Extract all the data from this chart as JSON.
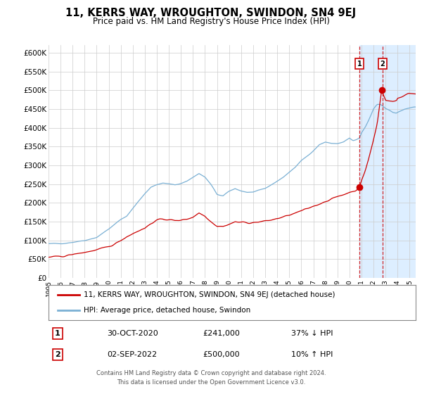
{
  "title": "11, KERRS WAY, WROUGHTON, SWINDON, SN4 9EJ",
  "subtitle": "Price paid vs. HM Land Registry's House Price Index (HPI)",
  "title_fontsize": 10.5,
  "subtitle_fontsize": 8.5,
  "hpi_color": "#7ab0d4",
  "property_color": "#cc0000",
  "bg_color": "#ffffff",
  "plot_bg_color": "#ffffff",
  "highlight_bg_color": "#ddeeff",
  "grid_color": "#cccccc",
  "marker1_date": 2020.83,
  "marker1_value": 241000,
  "marker2_date": 2022.67,
  "marker2_value": 500000,
  "dashed_line1_x": 2020.83,
  "dashed_line2_x": 2022.75,
  "legend_line1": "11, KERRS WAY, WROUGHTON, SWINDON, SN4 9EJ (detached house)",
  "legend_line2": "HPI: Average price, detached house, Swindon",
  "table_row1": [
    "1",
    "30-OCT-2020",
    "£241,000",
    "37% ↓ HPI"
  ],
  "table_row2": [
    "2",
    "02-SEP-2022",
    "£500,000",
    "10% ↑ HPI"
  ],
  "footer1": "Contains HM Land Registry data © Crown copyright and database right 2024.",
  "footer2": "This data is licensed under the Open Government Licence v3.0.",
  "ylim": [
    0,
    620000
  ],
  "xlim_start": 1995.0,
  "xlim_end": 2025.5,
  "yticks": [
    0,
    50000,
    100000,
    150000,
    200000,
    250000,
    300000,
    350000,
    400000,
    450000,
    500000,
    550000,
    600000
  ],
  "ytick_labels": [
    "£0",
    "£50K",
    "£100K",
    "£150K",
    "£200K",
    "£250K",
    "£300K",
    "£350K",
    "£400K",
    "£450K",
    "£500K",
    "£550K",
    "£600K"
  ],
  "xticks": [
    1995,
    1996,
    1997,
    1998,
    1999,
    2000,
    2001,
    2002,
    2003,
    2004,
    2005,
    2006,
    2007,
    2008,
    2009,
    2010,
    2011,
    2012,
    2013,
    2014,
    2015,
    2016,
    2017,
    2018,
    2019,
    2020,
    2021,
    2022,
    2023,
    2024,
    2025
  ]
}
